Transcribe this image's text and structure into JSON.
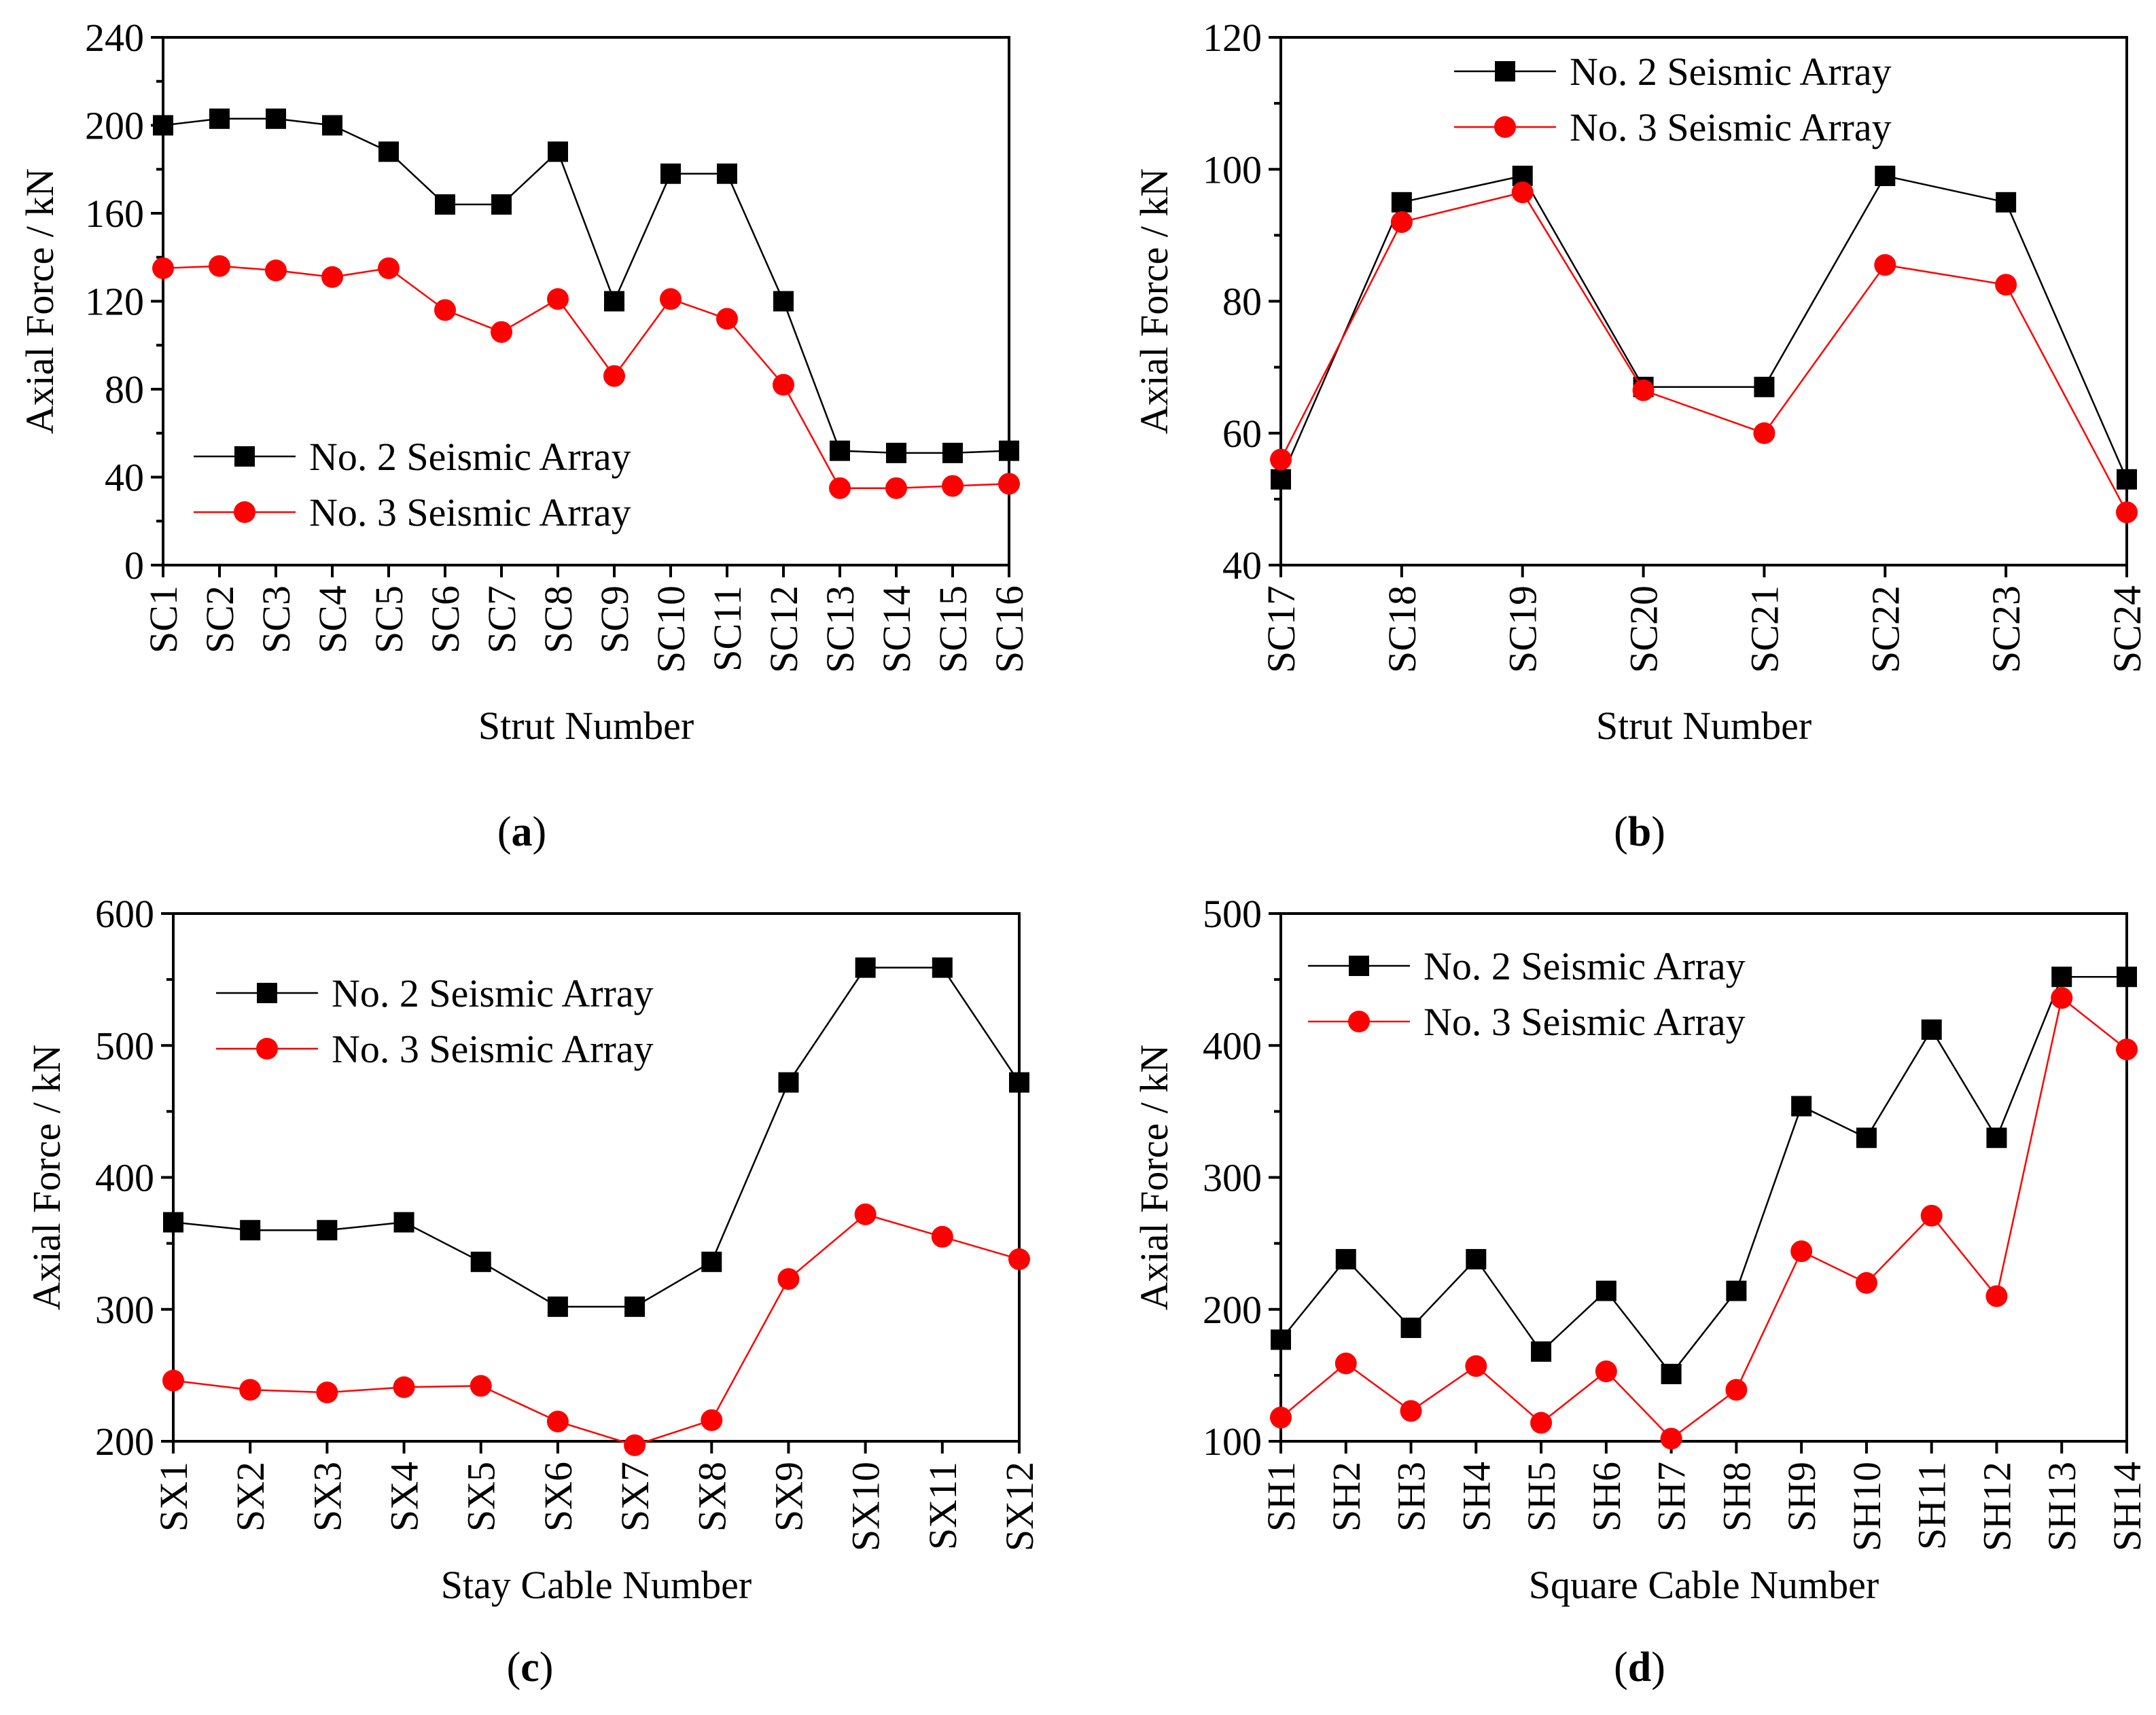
{
  "chart_data": [
    {
      "panel": "a",
      "type": "line",
      "categories": [
        "SC1",
        "SC2",
        "SC3",
        "SC4",
        "SC5",
        "SC6",
        "SC7",
        "SC8",
        "SC9",
        "SC10",
        "SC11",
        "SC12",
        "SC13",
        "SC14",
        "SC15",
        "SC16"
      ],
      "series": [
        {
          "name": "No. 2 Seismic Array",
          "color": "#000000",
          "marker": "square",
          "values": [
            200,
            203,
            203,
            200,
            188,
            164,
            164,
            188,
            120,
            178,
            178,
            120,
            52,
            51,
            51,
            52
          ]
        },
        {
          "name": "No. 3 Seismic Array",
          "color": "#ff0000",
          "marker": "circle",
          "values": [
            135,
            136,
            134,
            131,
            135,
            116,
            106,
            121,
            86,
            121,
            112,
            82,
            35,
            35,
            36,
            37
          ]
        }
      ],
      "xlabel": "Strut Number",
      "ylabel": "Axial Force / kN",
      "ylim": [
        0,
        240
      ],
      "yticks": [
        0,
        40,
        80,
        120,
        160,
        200,
        240
      ],
      "legend_position": "bottom-left",
      "label_letter": "a"
    },
    {
      "panel": "b",
      "type": "line",
      "categories": [
        "SC17",
        "SC18",
        "SC19",
        "SC20",
        "SC21",
        "SC22",
        "SC23",
        "SC24"
      ],
      "series": [
        {
          "name": "No. 2 Seismic Array",
          "color": "#000000",
          "marker": "square",
          "values": [
            53,
            95,
            99,
            67,
            67,
            99,
            95,
            53
          ]
        },
        {
          "name": "No. 3 Seismic Array",
          "color": "#ff0000",
          "marker": "circle",
          "values": [
            56,
            92,
            96.5,
            66.5,
            60,
            85.5,
            82.5,
            48
          ]
        }
      ],
      "xlabel": "Strut Number",
      "ylabel": "Axial Force / kN",
      "ylim": [
        40,
        120
      ],
      "yticks": [
        40,
        60,
        80,
        100,
        120
      ],
      "legend_position": "top-center",
      "label_letter": "b"
    },
    {
      "panel": "c",
      "type": "line",
      "categories": [
        "SX1",
        "SX2",
        "SX3",
        "SX4",
        "SX5",
        "SX6",
        "SX7",
        "SX8",
        "SX9",
        "SX10",
        "SX11",
        "SX12"
      ],
      "series": [
        {
          "name": "No. 2 Seismic Array",
          "color": "#000000",
          "marker": "square",
          "values": [
            366,
            360,
            360,
            366,
            336,
            302,
            302,
            336,
            472,
            559,
            559,
            472
          ]
        },
        {
          "name": "No. 3 Seismic Array",
          "color": "#ff0000",
          "marker": "circle",
          "values": [
            246,
            239,
            237,
            241,
            242,
            215,
            197,
            216,
            323,
            372,
            355,
            338
          ]
        }
      ],
      "xlabel": "Stay Cable Number",
      "ylabel": "Axial Force / kN",
      "ylim": [
        200,
        600
      ],
      "yticks": [
        200,
        300,
        400,
        500,
        600
      ],
      "legend_position": "top-left",
      "label_letter": "c"
    },
    {
      "panel": "d",
      "type": "line",
      "categories": [
        "SH1",
        "SH2",
        "SH3",
        "SH4",
        "SH5",
        "SH6",
        "SH7",
        "SH8",
        "SH9",
        "SH10",
        "SH11",
        "SH12",
        "SH13",
        "SH14"
      ],
      "series": [
        {
          "name": "No. 2 Seismic Array",
          "color": "#000000",
          "marker": "square",
          "values": [
            177,
            238,
            186,
            238,
            168,
            214,
            151,
            214,
            354,
            330,
            412,
            330,
            452,
            452
          ]
        },
        {
          "name": "No. 3 Seismic Array",
          "color": "#ff0000",
          "marker": "circle",
          "values": [
            118,
            159,
            123,
            157,
            114,
            153,
            102,
            139,
            244,
            220,
            271,
            210,
            436,
            397
          ]
        }
      ],
      "xlabel": "Square Cable Number",
      "ylabel": "Axial Force / kN",
      "ylim": [
        100,
        500
      ],
      "yticks": [
        100,
        200,
        300,
        400,
        500
      ],
      "legend_position": "top-left",
      "label_letter": "d"
    }
  ]
}
